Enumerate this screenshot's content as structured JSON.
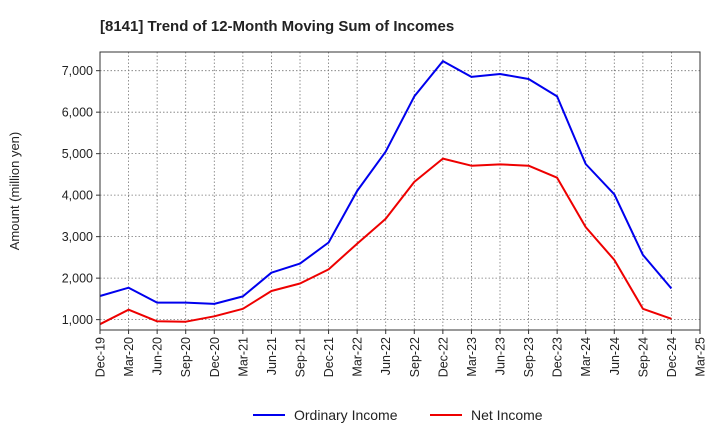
{
  "chart_data": {
    "type": "line",
    "title": "[8141]  Trend of 12-Month Moving Sum of Incomes",
    "xlabel": "",
    "ylabel": "Amount (million yen)",
    "ylim": [
      750,
      7450
    ],
    "yticks": [
      1000,
      2000,
      3000,
      4000,
      5000,
      6000,
      7000
    ],
    "ytick_labels": [
      "1,000",
      "2,000",
      "3,000",
      "4,000",
      "5,000",
      "6,000",
      "7,000"
    ],
    "categories": [
      "Dec-19",
      "Mar-20",
      "Jun-20",
      "Sep-20",
      "Dec-20",
      "Mar-21",
      "Jun-21",
      "Sep-21",
      "Dec-21",
      "Mar-22",
      "Jun-22",
      "Sep-22",
      "Dec-22",
      "Mar-23",
      "Jun-23",
      "Sep-23",
      "Dec-23",
      "Mar-24",
      "Jun-24",
      "Sep-24",
      "Dec-24",
      "Mar-25"
    ],
    "grid": true,
    "legend_position": "bottom-center",
    "series": [
      {
        "name": "Ordinary Income",
        "color": "#0000ee",
        "values": [
          1570,
          1770,
          1410,
          1410,
          1380,
          1560,
          2130,
          2350,
          2860,
          4100,
          5050,
          6380,
          7230,
          6850,
          6920,
          6800,
          6380,
          4750,
          4020,
          2560,
          1750,
          null
        ]
      },
      {
        "name": "Net Income",
        "color": "#ee0000",
        "values": [
          890,
          1240,
          960,
          950,
          1080,
          1260,
          1690,
          1870,
          2210,
          2830,
          3430,
          4320,
          4880,
          4710,
          4740,
          4710,
          4420,
          3230,
          2440,
          1260,
          1020,
          null
        ]
      }
    ]
  }
}
